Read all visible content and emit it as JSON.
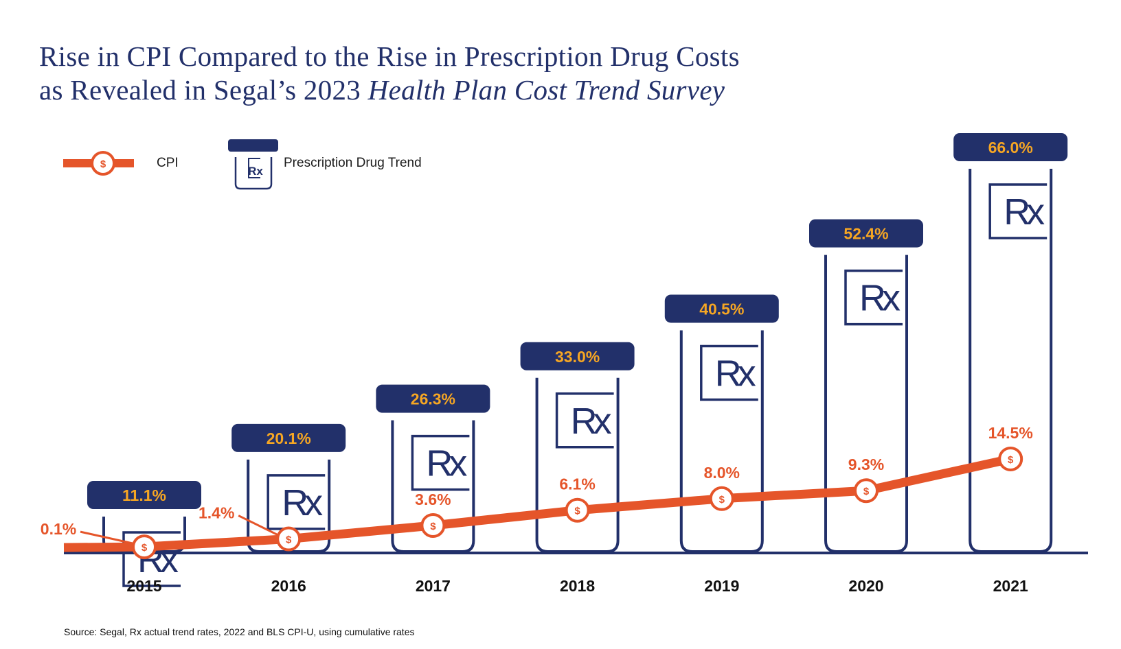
{
  "title": {
    "line1": "Rise in CPI Compared to the Rise in Prescription Drug Costs",
    "line2_prefix": "as Revealed in Segal’s 2023 ",
    "line2_italic": "Health Plan Cost Trend Survey"
  },
  "legend": {
    "cpi_label": "CPI",
    "cpi_icon": "dollar-coin-icon",
    "rx_label": "Prescription Drug Trend",
    "rx_icon": "pill-bottle-rx-icon"
  },
  "source": "Source: Segal, Rx actual trend rates, 2022 and BLS CPI-U, using cumulative rates",
  "colors": {
    "navy": "#22306a",
    "orange": "#e5552a",
    "gold": "#f6a623"
  },
  "chart_data": {
    "type": "bar",
    "title": "Rise in CPI Compared to the Rise in Prescription Drug Costs as Revealed in Segal’s 2023 Health Plan Cost Trend Survey",
    "xlabel": "",
    "ylabel": "",
    "categories": [
      "2015",
      "2016",
      "2017",
      "2018",
      "2019",
      "2020",
      "2021"
    ],
    "series": [
      {
        "name": "Prescription Drug Trend",
        "type": "bar",
        "values": [
          11.1,
          20.1,
          26.3,
          33.0,
          40.5,
          52.4,
          66.0
        ],
        "labels": [
          "11.1%",
          "20.1%",
          "26.3%",
          "33.0%",
          "40.5%",
          "52.4%",
          "66.0%"
        ]
      },
      {
        "name": "CPI",
        "type": "line",
        "values": [
          0.1,
          1.4,
          3.6,
          6.1,
          8.0,
          9.3,
          14.5
        ],
        "labels": [
          "0.1%",
          "1.4%",
          "3.6%",
          "6.1%",
          "8.0%",
          "9.3%",
          "14.5%"
        ]
      }
    ],
    "ylim": [
      0,
      66
    ],
    "grid": false,
    "legend_position": "top-left",
    "bar_icon_text": "Rx",
    "marker_text": "$"
  }
}
